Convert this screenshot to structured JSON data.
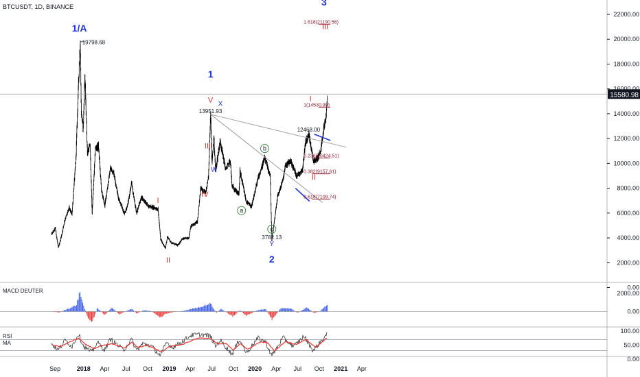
{
  "header": {
    "symbol": "BTCUSDT, 1D, BINANCE"
  },
  "chart_data": [
    {
      "type": "line",
      "panel": "price",
      "title": "",
      "xlabel": "",
      "ylabel": "",
      "y_ticks": [
        "0.00",
        "2000.00",
        "4000.00",
        "6000.00",
        "8000.00",
        "10000.00",
        "12000.00",
        "14000.00",
        "16000.00",
        "18000.00",
        "20000.00",
        "22000.00"
      ],
      "ylim": [
        -1000,
        23500
      ],
      "x_ticks": [
        "Sep",
        "2018",
        "Apr",
        "Jul",
        "Oct",
        "2019",
        "Apr",
        "Jul",
        "Oct",
        "2020",
        "Apr",
        "Jul",
        "Oct",
        "2021",
        "Apr"
      ],
      "last_price_label": "15580.98",
      "price_path": [
        [
          "2017-08-17",
          4300
        ],
        [
          "2017-08-28",
          4600
        ],
        [
          "2017-09-02",
          4800
        ],
        [
          "2017-09-15",
          3200
        ],
        [
          "2017-09-30",
          4300
        ],
        [
          "2017-10-12",
          5400
        ],
        [
          "2017-10-31",
          6400
        ],
        [
          "2017-11-12",
          5900
        ],
        [
          "2017-11-29",
          10400
        ],
        [
          "2017-12-07",
          15000
        ],
        [
          "2017-12-17",
          19798.68
        ],
        [
          "2017-12-22",
          14000
        ],
        [
          "2017-12-30",
          12800
        ],
        [
          "2018-01-06",
          17100
        ],
        [
          "2018-01-17",
          10800
        ],
        [
          "2018-01-28",
          11500
        ],
        [
          "2018-02-06",
          6000
        ],
        [
          "2018-02-20",
          11200
        ],
        [
          "2018-03-05",
          11400
        ],
        [
          "2018-03-18",
          7800
        ],
        [
          "2018-04-01",
          6600
        ],
        [
          "2018-04-25",
          9600
        ],
        [
          "2018-05-10",
          9200
        ],
        [
          "2018-05-28",
          7300
        ],
        [
          "2018-06-24",
          5900
        ],
        [
          "2018-07-08",
          6700
        ],
        [
          "2018-07-24",
          8400
        ],
        [
          "2018-08-14",
          6000
        ],
        [
          "2018-09-05",
          7300
        ],
        [
          "2018-10-01",
          6600
        ],
        [
          "2018-11-01",
          6400
        ],
        [
          "2018-11-14",
          6300
        ],
        [
          "2018-11-25",
          3900
        ],
        [
          "2018-12-15",
          3150
        ],
        [
          "2018-12-24",
          4100
        ],
        [
          "2019-01-10",
          3600
        ],
        [
          "2019-02-07",
          3400
        ],
        [
          "2019-02-24",
          3900
        ],
        [
          "2019-03-25",
          4000
        ],
        [
          "2019-04-02",
          4900
        ],
        [
          "2019-05-01",
          5300
        ],
        [
          "2019-05-15",
          8000
        ],
        [
          "2019-06-06",
          7600
        ],
        [
          "2019-06-17",
          9000
        ],
        [
          "2019-06-26",
          13951.93
        ],
        [
          "2019-07-02",
          10000
        ],
        [
          "2019-07-10",
          12200
        ],
        [
          "2019-07-17",
          9400
        ],
        [
          "2019-08-06",
          11800
        ],
        [
          "2019-08-29",
          9500
        ],
        [
          "2019-09-18",
          10200
        ],
        [
          "2019-09-25",
          8200
        ],
        [
          "2019-10-25",
          7500
        ],
        [
          "2019-10-29",
          9400
        ],
        [
          "2019-11-25",
          6900
        ],
        [
          "2019-12-18",
          6500
        ],
        [
          "2020-01-14",
          8800
        ],
        [
          "2020-02-12",
          10400
        ],
        [
          "2020-03-06",
          9000
        ],
        [
          "2020-03-13",
          3782.13
        ],
        [
          "2020-04-06",
          7300
        ],
        [
          "2020-04-30",
          8700
        ],
        [
          "2020-05-10",
          9800
        ],
        [
          "2020-06-01",
          10200
        ],
        [
          "2020-06-27",
          9000
        ],
        [
          "2020-07-22",
          9500
        ],
        [
          "2020-08-02",
          11500
        ],
        [
          "2020-08-17",
          12468.0
        ],
        [
          "2020-09-06",
          10200
        ],
        [
          "2020-09-23",
          10400
        ],
        [
          "2020-10-08",
          11000
        ],
        [
          "2020-10-21",
          12900
        ],
        [
          "2020-10-31",
          13800
        ],
        [
          "2020-11-05",
          15580.98
        ]
      ],
      "price_labels": [
        "19798.68",
        "13951.93",
        "3782.13",
        "12468.00"
      ],
      "wave_labels": {
        "w1A": "1/A",
        "w1": "1",
        "w2": "2",
        "w3": "3",
        "r_I_2018": "I",
        "r_II_2018": "II",
        "r_III_2019": "III",
        "r_IV_2019": "IV",
        "r_V_2019": "V",
        "W": "W",
        "X": "X",
        "Y": "Y",
        "a": "a",
        "b": "b",
        "c": "c",
        "r_I_2020": "I",
        "r_II_2020": "II",
        "r_III_2020": "III"
      },
      "fib_levels": [
        {
          "ratio": 1.618,
          "price": 21190.56,
          "label": "1.618(21190.56)"
        },
        {
          "ratio": 1,
          "price": 14530.99,
          "label": "1(14530.99)"
        },
        {
          "ratio": 0.236,
          "price": 10424.51,
          "label": "0.236(10424.51)"
        },
        {
          "ratio": 0.382,
          "price": 9157.61,
          "label": "0.382(9157.61)"
        },
        {
          "ratio": 0.618,
          "price": 7109.74,
          "label": "0.618(7109.74)"
        }
      ],
      "trendlines": [
        {
          "from": [
            "2019-06-26",
            13950
          ],
          "to": [
            "2021-01-25",
            11300
          ]
        },
        {
          "from": [
            "2019-06-26",
            13950
          ],
          "to": [
            "2020-10-15",
            6850
          ]
        }
      ],
      "blue_segments": [
        {
          "from": [
            "2020-09-10",
            12350
          ],
          "to": [
            "2020-11-18",
            11850
          ]
        },
        {
          "from": [
            "2020-06-22",
            8000
          ],
          "to": [
            "2020-08-21",
            6950
          ]
        }
      ],
      "colors": {
        "price": "#000000",
        "wave_blue": "#2033d6",
        "wave_red": "#d32f2f",
        "fib": "#8b1a2c"
      }
    },
    {
      "type": "bar",
      "panel": "macd",
      "title": "MACD DEUTER",
      "y_ticks": [
        "2000.00",
        "0.00"
      ],
      "ylim": [
        -1400,
        2800
      ],
      "series": [
        {
          "name": "MACD DEUTER",
          "profile": [
            [
              "2017-08-17",
              0
            ],
            [
              "2017-09-20",
              -100
            ],
            [
              "2017-10-20",
              250
            ],
            [
              "2017-11-30",
              650
            ],
            [
              "2017-12-17",
              2200
            ],
            [
              "2017-12-28",
              900
            ],
            [
              "2018-01-20",
              -700
            ],
            [
              "2018-02-06",
              -1200
            ],
            [
              "2018-03-01",
              400
            ],
            [
              "2018-04-01",
              -400
            ],
            [
              "2018-05-01",
              450
            ],
            [
              "2018-06-01",
              -300
            ],
            [
              "2018-07-25",
              300
            ],
            [
              "2018-08-15",
              -200
            ],
            [
              "2018-09-15",
              150
            ],
            [
              "2018-10-15",
              50
            ],
            [
              "2018-11-25",
              -650
            ],
            [
              "2018-12-15",
              -250
            ],
            [
              "2019-01-20",
              -50
            ],
            [
              "2019-03-01",
              60
            ],
            [
              "2019-04-10",
              320
            ],
            [
              "2019-05-20",
              550
            ],
            [
              "2019-06-26",
              900
            ],
            [
              "2019-07-20",
              -150
            ],
            [
              "2019-08-10",
              300
            ],
            [
              "2019-09-30",
              -550
            ],
            [
              "2019-10-29",
              150
            ],
            [
              "2019-11-25",
              -480
            ],
            [
              "2020-01-10",
              120
            ],
            [
              "2020-02-15",
              300
            ],
            [
              "2020-03-15",
              -900
            ],
            [
              "2020-04-20",
              350
            ],
            [
              "2020-06-01",
              350
            ],
            [
              "2020-07-01",
              -150
            ],
            [
              "2020-08-10",
              450
            ],
            [
              "2020-09-10",
              -180
            ],
            [
              "2020-10-05",
              50
            ],
            [
              "2020-10-25",
              500
            ],
            [
              "2020-11-05",
              800
            ]
          ]
        }
      ],
      "colors": {
        "positive": "#3d5ce6",
        "negative": "#e53935"
      }
    },
    {
      "type": "line",
      "panel": "rsi",
      "title": "RSI",
      "y_ticks": [
        "100.00",
        "50.00",
        "0.00"
      ],
      "ylim": [
        -8,
        108
      ],
      "levels": [
        70,
        30
      ],
      "series": [
        {
          "name": "RSI",
          "profile": [
            [
              "2017-08-17",
              55
            ],
            [
              "2017-09-15",
              32
            ],
            [
              "2017-10-15",
              68
            ],
            [
              "2017-11-12",
              45
            ],
            [
              "2017-12-10",
              90
            ],
            [
              "2018-01-01",
              45
            ],
            [
              "2018-02-06",
              25
            ],
            [
              "2018-03-01",
              60
            ],
            [
              "2018-04-01",
              33
            ],
            [
              "2018-04-25",
              72
            ],
            [
              "2018-06-20",
              32
            ],
            [
              "2018-07-24",
              70
            ],
            [
              "2018-08-14",
              32
            ],
            [
              "2018-09-10",
              55
            ],
            [
              "2018-10-15",
              48
            ],
            [
              "2018-11-25",
              12
            ],
            [
              "2018-12-20",
              60
            ],
            [
              "2019-01-15",
              42
            ],
            [
              "2019-02-25",
              62
            ],
            [
              "2019-04-02",
              85
            ],
            [
              "2019-05-15",
              88
            ],
            [
              "2019-06-26",
              82
            ],
            [
              "2019-07-17",
              45
            ],
            [
              "2019-08-06",
              68
            ],
            [
              "2019-09-25",
              18
            ],
            [
              "2019-10-29",
              72
            ],
            [
              "2019-11-25",
              22
            ],
            [
              "2020-01-15",
              75
            ],
            [
              "2020-02-15",
              62
            ],
            [
              "2020-03-13",
              12
            ],
            [
              "2020-04-30",
              76
            ],
            [
              "2020-06-15",
              45
            ],
            [
              "2020-07-28",
              82
            ],
            [
              "2020-09-06",
              30
            ],
            [
              "2020-10-10",
              65
            ],
            [
              "2020-11-05",
              90
            ]
          ]
        },
        {
          "name": "MA",
          "profile": [
            [
              "2017-08-17",
              52
            ],
            [
              "2017-09-20",
              44
            ],
            [
              "2017-10-25",
              58
            ],
            [
              "2017-12-10",
              75
            ],
            [
              "2018-01-10",
              52
            ],
            [
              "2018-02-15",
              38
            ],
            [
              "2018-03-15",
              48
            ],
            [
              "2018-05-01",
              55
            ],
            [
              "2018-06-25",
              40
            ],
            [
              "2018-07-25",
              60
            ],
            [
              "2018-08-20",
              42
            ],
            [
              "2018-10-01",
              50
            ],
            [
              "2018-11-30",
              25
            ],
            [
              "2019-01-01",
              45
            ],
            [
              "2019-02-25",
              52
            ],
            [
              "2019-05-01",
              75
            ],
            [
              "2019-06-26",
              74
            ],
            [
              "2019-07-25",
              55
            ],
            [
              "2019-09-01",
              55
            ],
            [
              "2019-10-01",
              32
            ],
            [
              "2019-11-01",
              55
            ],
            [
              "2019-12-01",
              35
            ],
            [
              "2020-01-25",
              62
            ],
            [
              "2020-02-25",
              58
            ],
            [
              "2020-03-25",
              28
            ],
            [
              "2020-05-10",
              63
            ],
            [
              "2020-06-25",
              52
            ],
            [
              "2020-08-05",
              70
            ],
            [
              "2020-09-15",
              42
            ],
            [
              "2020-10-15",
              62
            ],
            [
              "2020-11-05",
              78
            ]
          ]
        }
      ],
      "colors": {
        "rsi": "#222222",
        "ma": "#e53935"
      }
    }
  ]
}
